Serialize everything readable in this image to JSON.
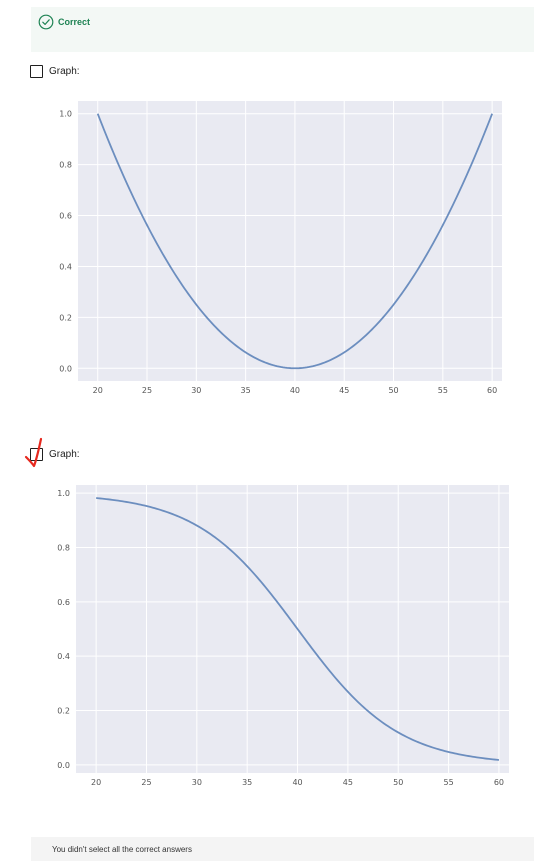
{
  "status": {
    "label": "Correct",
    "icon": "check-circle-icon",
    "color": "#1f8354"
  },
  "options": [
    {
      "label": "Graph:",
      "checked": false
    },
    {
      "label": "Graph:",
      "checked": false,
      "annotation": "red-hand-drawn-checkmark"
    }
  ],
  "charts": {
    "parabola": {
      "x_ticks": [
        "20",
        "25",
        "30",
        "35",
        "40",
        "45",
        "50",
        "55",
        "60"
      ],
      "y_ticks": [
        "0.0",
        "0.2",
        "0.4",
        "0.6",
        "0.8",
        "1.0"
      ]
    },
    "sigmoid": {
      "x_ticks": [
        "20",
        "25",
        "30",
        "35",
        "40",
        "45",
        "50",
        "55",
        "60"
      ],
      "y_ticks": [
        "0.0",
        "0.2",
        "0.4",
        "0.6",
        "0.8",
        "1.0"
      ]
    }
  },
  "chart_data": [
    {
      "type": "line",
      "x": [
        20,
        25,
        30,
        35,
        40,
        45,
        50,
        55,
        60
      ],
      "series": [
        {
          "values": [
            1.0,
            0.5625,
            0.25,
            0.0625,
            0.0,
            0.0625,
            0.25,
            0.5625,
            1.0
          ],
          "color": "#6c8ebf"
        }
      ],
      "xlim": [
        18,
        61
      ],
      "ylim": [
        -0.05,
        1.05
      ],
      "grid": true,
      "background": "#e9eaf2"
    },
    {
      "type": "line",
      "x": [
        20,
        25,
        30,
        35,
        40,
        45,
        50,
        55,
        60
      ],
      "series": [
        {
          "values": [
            0.982,
            0.953,
            0.881,
            0.731,
            0.5,
            0.269,
            0.119,
            0.047,
            0.018
          ],
          "color": "#6c8ebf"
        }
      ],
      "xlim": [
        18,
        61
      ],
      "ylim": [
        -0.03,
        1.03
      ],
      "grid": true,
      "background": "#e9eaf2"
    }
  ],
  "feedback": {
    "text": "You didn't select all the correct answers"
  }
}
